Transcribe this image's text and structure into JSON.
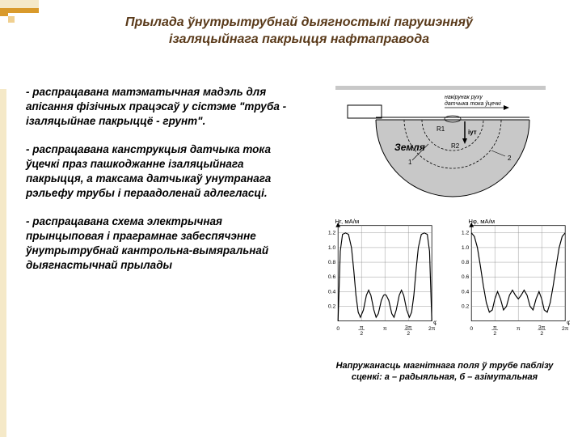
{
  "title_line1": "Прылада ўнутрытрубнай дыягностыкі парушэнняў",
  "title_line2": "ізаляцыйнага пакрыцця нафтаправода",
  "paragraphs": [
    "- распрацавана матэматычная мадэль для апісання фізічных працэсаў у сістэме \"труба - ізаляцыйнае пакрыццё - грунт\".",
    "- распрацавана канструкцыя датчыка тока ўцечкі праз пашкоджанне ізаляцыйнага пакрыцця, а таксама датчыкаў унутранага рэльефу трубы і пераадоленай адлегласці.",
    "- распрацавана схема электрычная прынцыповая і праграмнае забеспячэнне ўнутрытрубнай кантрольна-вымяральнай дыягнастычнай прылады"
  ],
  "caption": "Напружанасць магнітнага поля ў трубе паблізу сценкі: а – радыяльная, б – азімутальная",
  "diagram": {
    "type": "diagram",
    "background": "#ffffff",
    "pipe_fill": "#c8c8c8",
    "pipe_stroke": "#000000",
    "ground_label": "Земля",
    "ground_font": 12,
    "arc_labels": [
      "R1",
      "R2"
    ],
    "arc_font": 8,
    "current_label": "iут",
    "label_arrow_text": "накірунак руху датчыка тока ўцечкі",
    "label_arrow_font": 7,
    "rect_box": {
      "stroke": "#000000",
      "fill": "none"
    },
    "number_labels": [
      "1",
      "2"
    ],
    "number_font": 8
  },
  "charts": {
    "type": "line",
    "xlim": [
      0,
      6.283
    ],
    "ylim": [
      0,
      1.3
    ],
    "ytick_step": 0.2,
    "yticks": [
      "0.2",
      "0.4",
      "0.6",
      "0.8",
      "1.0",
      "1.2"
    ],
    "xticks_labels": [
      "0",
      "π/2",
      "π",
      "3π/2",
      "2π"
    ],
    "xticks_pos": [
      0,
      1.5708,
      3.1416,
      4.7124,
      6.2832
    ],
    "xlabel": "φ, рад",
    "axis_label_font": 8,
    "tick_font": 7,
    "grid_color": "#808080",
    "line_color": "#000000",
    "background": "#ffffff",
    "line_width": 1.2,
    "a": {
      "ylabel": "Hr, мА/м",
      "points": [
        [
          0.0,
          0.0
        ],
        [
          0.15,
          0.95
        ],
        [
          0.3,
          1.18
        ],
        [
          0.5,
          1.2
        ],
        [
          0.7,
          1.18
        ],
        [
          0.9,
          1.0
        ],
        [
          1.05,
          0.7
        ],
        [
          1.2,
          0.35
        ],
        [
          1.35,
          0.12
        ],
        [
          1.5,
          0.05
        ],
        [
          1.7,
          0.15
        ],
        [
          1.9,
          0.35
        ],
        [
          2.05,
          0.42
        ],
        [
          2.2,
          0.35
        ],
        [
          2.4,
          0.15
        ],
        [
          2.55,
          0.05
        ],
        [
          2.7,
          0.1
        ],
        [
          2.9,
          0.28
        ],
        [
          3.05,
          0.35
        ],
        [
          3.1416,
          0.36
        ],
        [
          3.23,
          0.35
        ],
        [
          3.4,
          0.28
        ],
        [
          3.6,
          0.1
        ],
        [
          3.75,
          0.05
        ],
        [
          3.9,
          0.15
        ],
        [
          4.1,
          0.35
        ],
        [
          4.25,
          0.42
        ],
        [
          4.4,
          0.35
        ],
        [
          4.6,
          0.15
        ],
        [
          4.78,
          0.05
        ],
        [
          4.93,
          0.12
        ],
        [
          5.08,
          0.35
        ],
        [
          5.23,
          0.7
        ],
        [
          5.38,
          1.0
        ],
        [
          5.58,
          1.18
        ],
        [
          5.78,
          1.2
        ],
        [
          5.98,
          1.18
        ],
        [
          6.13,
          0.95
        ],
        [
          6.2832,
          0.0
        ]
      ]
    },
    "b": {
      "ylabel": "Hφ, мА/м",
      "points": [
        [
          0.0,
          1.2
        ],
        [
          0.2,
          1.15
        ],
        [
          0.4,
          1.0
        ],
        [
          0.6,
          0.75
        ],
        [
          0.8,
          0.48
        ],
        [
          1.0,
          0.25
        ],
        [
          1.2,
          0.12
        ],
        [
          1.4,
          0.15
        ],
        [
          1.57,
          0.3
        ],
        [
          1.75,
          0.4
        ],
        [
          1.95,
          0.3
        ],
        [
          2.15,
          0.15
        ],
        [
          2.35,
          0.2
        ],
        [
          2.55,
          0.35
        ],
        [
          2.75,
          0.42
        ],
        [
          2.95,
          0.35
        ],
        [
          3.1416,
          0.3
        ],
        [
          3.33,
          0.35
        ],
        [
          3.53,
          0.42
        ],
        [
          3.73,
          0.35
        ],
        [
          3.93,
          0.2
        ],
        [
          4.13,
          0.15
        ],
        [
          4.33,
          0.3
        ],
        [
          4.53,
          0.4
        ],
        [
          4.71,
          0.3
        ],
        [
          4.88,
          0.15
        ],
        [
          5.08,
          0.12
        ],
        [
          5.28,
          0.25
        ],
        [
          5.48,
          0.48
        ],
        [
          5.68,
          0.75
        ],
        [
          5.88,
          1.0
        ],
        [
          6.08,
          1.15
        ],
        [
          6.2832,
          1.2
        ]
      ]
    }
  },
  "colors": {
    "title": "#5a3a1a",
    "decoration_light": "#f5e9c8",
    "decoration_dark": "#d99a2b"
  }
}
